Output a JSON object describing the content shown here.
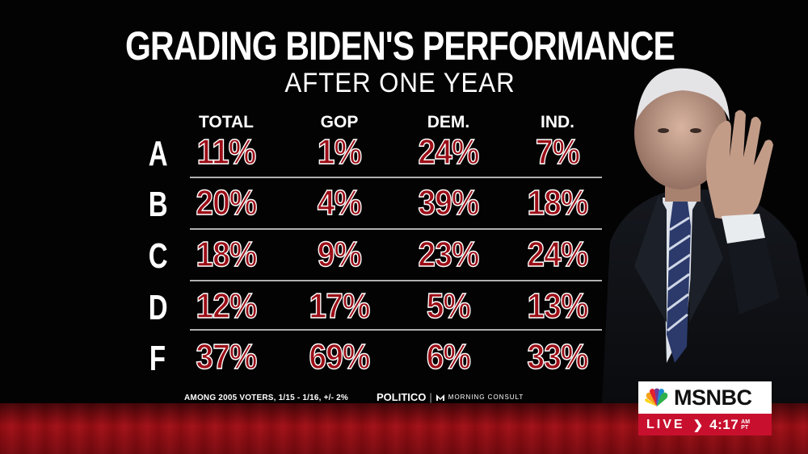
{
  "title": "GRADING BIDEN'S PERFORMANCE",
  "subtitle": "AFTER ONE YEAR",
  "columns": [
    "TOTAL",
    "GOP",
    "DEM.",
    "IND."
  ],
  "rows": [
    {
      "grade": "A",
      "values": [
        "11%",
        "1%",
        "24%",
        "7%"
      ]
    },
    {
      "grade": "B",
      "values": [
        "20%",
        "4%",
        "39%",
        "18%"
      ]
    },
    {
      "grade": "C",
      "values": [
        "18%",
        "9%",
        "23%",
        "24%"
      ]
    },
    {
      "grade": "D",
      "values": [
        "12%",
        "17%",
        "5%",
        "13%"
      ]
    },
    {
      "grade": "F",
      "values": [
        "37%",
        "69%",
        "6%",
        "33%"
      ]
    }
  ],
  "footnote": "AMONG 2005 VOTERS, 1/15 - 1/16, +/- 2%",
  "sponsor": {
    "politico": "POLITICO",
    "partner": "MORNING CONSULT"
  },
  "network": {
    "logo": "MSNBC",
    "live": "LIVE",
    "time": "4:17",
    "am": "AM",
    "tz": "PT"
  },
  "colors": {
    "value_red": "#9b0d16",
    "band_red": "#a4131a",
    "live_red": "#c8102e"
  },
  "icons": {
    "peacock": "peacock-icon",
    "arrow": "chevron-right-icon",
    "partner_mark": "morning-consult-icon"
  }
}
